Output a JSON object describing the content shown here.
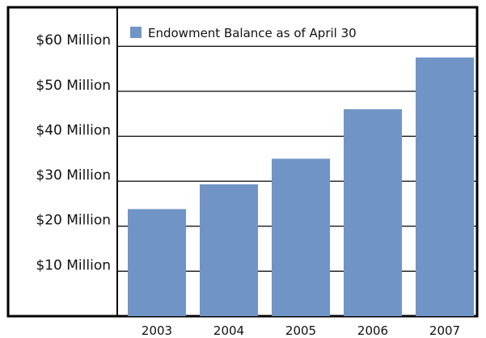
{
  "chart_data": {
    "type": "bar",
    "categories": [
      "2003",
      "2004",
      "2005",
      "2006",
      "2007"
    ],
    "values": [
      23.8,
      29.3,
      35.0,
      46.0,
      57.5
    ],
    "y_ticks": [
      {
        "value": 10,
        "label": "$10 Million"
      },
      {
        "value": 20,
        "label": "$20 Million"
      },
      {
        "value": 30,
        "label": "$30 Million"
      },
      {
        "value": 40,
        "label": "$40 Million"
      },
      {
        "value": 50,
        "label": "$50 Million"
      },
      {
        "value": 60,
        "label": "$60 Million"
      }
    ],
    "ylim": [
      0,
      60
    ],
    "legend": "Endowment Balance as of April 30",
    "legend_position": "top-left",
    "grid": "y-major",
    "bar_color": "#7194c6",
    "frame_color": "#000000"
  }
}
